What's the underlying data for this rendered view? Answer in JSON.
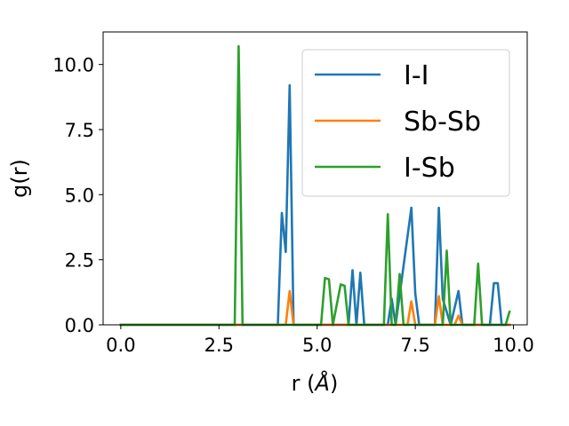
{
  "chart_data": {
    "type": "line",
    "xlabel_main": "r (",
    "xlabel_unit": "Å",
    "xlabel_close": ")",
    "ylabel": "g(r)",
    "xlim": [
      -0.45,
      10.35
    ],
    "ylim": [
      0,
      11.25
    ],
    "x_ticks": [
      0.0,
      2.5,
      5.0,
      7.5,
      10.0
    ],
    "x_tick_labels": [
      "0.0",
      "2.5",
      "5.0",
      "7.5",
      "10.0"
    ],
    "y_ticks": [
      0.0,
      2.5,
      5.0,
      7.5,
      10.0
    ],
    "y_tick_labels": [
      "0.0",
      "2.5",
      "5.0",
      "7.5",
      "10.0"
    ],
    "grid": false,
    "legend_position": "top-right",
    "series": [
      {
        "name": "I-I",
        "color": "#1f77b4",
        "points": [
          [
            0,
            0
          ],
          [
            4.0,
            0
          ],
          [
            4.1,
            4.3
          ],
          [
            4.2,
            2.8
          ],
          [
            4.3,
            9.2
          ],
          [
            4.4,
            0
          ],
          [
            5.8,
            0
          ],
          [
            5.9,
            2.1
          ],
          [
            6.0,
            0
          ],
          [
            6.1,
            2.0
          ],
          [
            6.2,
            0
          ],
          [
            6.8,
            0
          ],
          [
            6.9,
            1.0
          ],
          [
            7.0,
            0
          ],
          [
            7.4,
            4.5
          ],
          [
            7.5,
            1.2
          ],
          [
            7.6,
            0
          ],
          [
            8.0,
            0
          ],
          [
            8.1,
            4.5
          ],
          [
            8.2,
            1.0
          ],
          [
            8.4,
            0
          ],
          [
            8.6,
            1.3
          ],
          [
            8.7,
            0
          ],
          [
            9.4,
            0
          ],
          [
            9.5,
            1.6
          ],
          [
            9.6,
            1.6
          ],
          [
            9.7,
            0
          ],
          [
            9.9,
            0
          ]
        ]
      },
      {
        "name": "Sb-Sb",
        "color": "#ff7f0e",
        "points": [
          [
            0,
            0
          ],
          [
            4.2,
            0
          ],
          [
            4.3,
            1.3
          ],
          [
            4.4,
            0
          ],
          [
            7.3,
            0
          ],
          [
            7.4,
            0.9
          ],
          [
            7.5,
            0
          ],
          [
            8.0,
            0
          ],
          [
            8.1,
            1.1
          ],
          [
            8.2,
            0
          ],
          [
            8.5,
            0
          ],
          [
            8.6,
            0.35
          ],
          [
            8.7,
            0
          ],
          [
            9.9,
            0
          ]
        ]
      },
      {
        "name": "I-Sb",
        "color": "#2ca02c",
        "points": [
          [
            0,
            0
          ],
          [
            2.9,
            0
          ],
          [
            3.0,
            10.7
          ],
          [
            3.1,
            0
          ],
          [
            5.1,
            0
          ],
          [
            5.2,
            1.8
          ],
          [
            5.3,
            1.75
          ],
          [
            5.4,
            0
          ],
          [
            5.6,
            1.55
          ],
          [
            5.7,
            1.5
          ],
          [
            5.8,
            0
          ],
          [
            6.7,
            0
          ],
          [
            6.8,
            4.25
          ],
          [
            6.9,
            0
          ],
          [
            7.0,
            0
          ],
          [
            7.1,
            1.95
          ],
          [
            7.2,
            0
          ],
          [
            8.2,
            0
          ],
          [
            8.3,
            2.85
          ],
          [
            8.4,
            0
          ],
          [
            9.0,
            0
          ],
          [
            9.1,
            2.35
          ],
          [
            9.2,
            0
          ],
          [
            9.8,
            0
          ],
          [
            9.9,
            0.5
          ]
        ]
      }
    ]
  }
}
